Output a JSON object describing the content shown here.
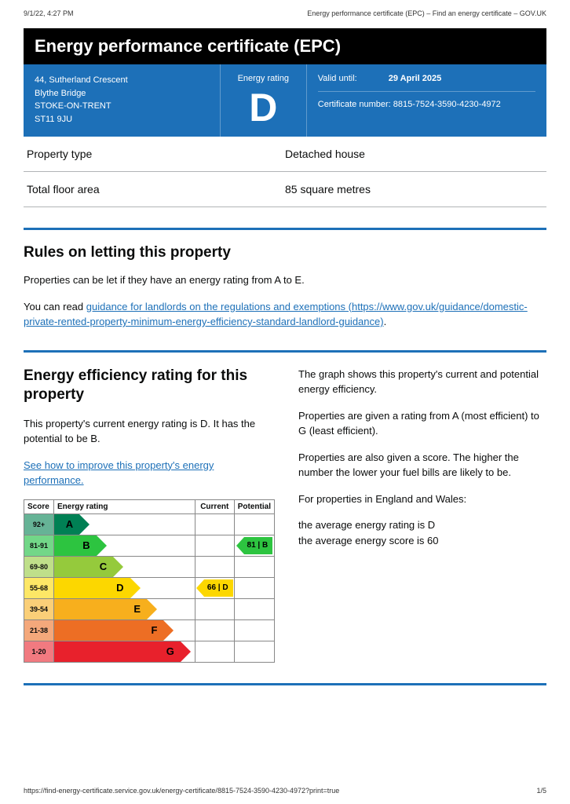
{
  "print": {
    "timestamp": "9/1/22, 4:27 PM",
    "doc_title": "Energy performance certificate (EPC) – Find an energy certificate – GOV.UK",
    "url": "https://find-energy-certificate.service.gov.uk/energy-certificate/8815-7524-3590-4230-4972?print=true",
    "page": "1/5"
  },
  "title": "Energy performance certificate (EPC)",
  "panel": {
    "address": {
      "line1": "44, Sutherland Crescent",
      "line2": "Blythe Bridge",
      "line3": "STOKE-ON-TRENT",
      "line4": "ST11 9JU"
    },
    "rating_label": "Energy rating",
    "rating_letter": "D",
    "valid_label": "Valid until:",
    "valid_value": "29 April 2025",
    "cert_label": "Certificate number:",
    "cert_value": "8815-7524-3590-4230-4972",
    "bg_color": "#1d70b8"
  },
  "property": {
    "type_label": "Property type",
    "type_value": "Detached house",
    "area_label": "Total floor area",
    "area_value": "85 square metres"
  },
  "letting": {
    "heading": "Rules on letting this property",
    "p1": "Properties can be let if they have an energy rating from A to E.",
    "p2_prefix": "You can read ",
    "link_text": "guidance for landlords on the regulations and exemptions (https://www.gov.uk/guidance/domestic-private-rented-property-minimum-energy-efficiency-standard-landlord-guidance)",
    "p2_suffix": "."
  },
  "efficiency": {
    "heading": "Energy efficiency rating for this property",
    "intro": "This property's current energy rating is D. It has the potential to be B.",
    "link": "See how to improve this property's energy performance.",
    "side": {
      "p1": "The graph shows this property's current and potential energy efficiency.",
      "p2": "Properties are given a rating from A (most efficient) to G (least efficient).",
      "p3": "Properties are also given a score. The higher the number the lower your fuel bills are likely to be.",
      "p4": "For properties in England and Wales:",
      "p5a": "the average energy rating is D",
      "p5b": "the average energy score is 60"
    }
  },
  "chart": {
    "headers": {
      "score": "Score",
      "rating": "Energy rating",
      "current": "Current",
      "potential": "Potential"
    },
    "current": {
      "text": "66 | D",
      "row": 3,
      "bg": "#fcd700"
    },
    "potential": {
      "text": "81 | B",
      "row": 1,
      "bg": "#2dc440"
    },
    "bands": [
      {
        "score": "92+",
        "letter": "A",
        "color": "#008054",
        "score_bg": "#66b396",
        "width_pct": 18
      },
      {
        "score": "81-91",
        "letter": "B",
        "color": "#2dc440",
        "score_bg": "#72d788",
        "width_pct": 30
      },
      {
        "score": "69-80",
        "letter": "C",
        "color": "#95ca3c",
        "score_bg": "#bfdf8a",
        "width_pct": 42
      },
      {
        "score": "55-68",
        "letter": "D",
        "color": "#fcd700",
        "score_bg": "#fde766",
        "width_pct": 54
      },
      {
        "score": "39-54",
        "letter": "E",
        "color": "#f7af1d",
        "score_bg": "#facf78",
        "width_pct": 66
      },
      {
        "score": "21-38",
        "letter": "F",
        "color": "#ed6e24",
        "score_bg": "#f4a87b",
        "width_pct": 78
      },
      {
        "score": "1-20",
        "letter": "G",
        "color": "#e8212c",
        "score_bg": "#f17a80",
        "width_pct": 90
      }
    ]
  }
}
